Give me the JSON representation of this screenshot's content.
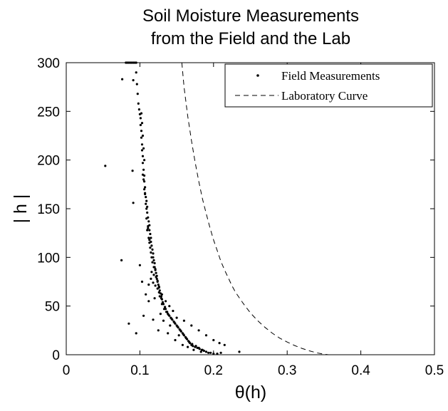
{
  "chart_data": {
    "type": "scatter",
    "title": [
      "Soil Moisture Measurements",
      "from the Field and the Lab"
    ],
    "xlabel": "θ(h)",
    "ylabel": "| h |",
    "xlim": [
      0,
      0.5
    ],
    "ylim": [
      0,
      300
    ],
    "xticks": [
      "0",
      "0.1",
      "0.2",
      "0.3",
      "0.4",
      "0.5"
    ],
    "yticks": [
      "0",
      "50",
      "100",
      "150",
      "200",
      "250",
      "300"
    ],
    "grid": false,
    "legend_position": "top-right",
    "series": [
      {
        "name": "Field Measurements",
        "style": "dots",
        "color": "#000000",
        "points": [
          [
            0.081,
            300
          ],
          [
            0.083,
            300
          ],
          [
            0.085,
            300
          ],
          [
            0.087,
            300
          ],
          [
            0.089,
            300
          ],
          [
            0.091,
            300
          ],
          [
            0.093,
            300
          ],
          [
            0.095,
            300
          ],
          [
            0.076,
            283
          ],
          [
            0.091,
            282
          ],
          [
            0.095,
            290
          ],
          [
            0.096,
            278
          ],
          [
            0.097,
            268
          ],
          [
            0.098,
            258
          ],
          [
            0.099,
            252
          ],
          [
            0.1,
            247
          ],
          [
            0.101,
            243
          ],
          [
            0.101,
            236
          ],
          [
            0.102,
            230
          ],
          [
            0.102,
            223
          ],
          [
            0.103,
            216
          ],
          [
            0.103,
            210
          ],
          [
            0.104,
            204
          ],
          [
            0.104,
            197
          ],
          [
            0.105,
            190
          ],
          [
            0.106,
            184
          ],
          [
            0.106,
            178
          ],
          [
            0.107,
            172
          ],
          [
            0.107,
            166
          ],
          [
            0.108,
            162
          ],
          [
            0.109,
            158
          ],
          [
            0.11,
            152
          ],
          [
            0.11,
            146
          ],
          [
            0.111,
            141
          ],
          [
            0.112,
            137
          ],
          [
            0.113,
            133
          ],
          [
            0.113,
            128
          ],
          [
            0.114,
            124
          ],
          [
            0.115,
            120
          ],
          [
            0.115,
            116
          ],
          [
            0.116,
            112
          ],
          [
            0.117,
            108
          ],
          [
            0.118,
            104
          ],
          [
            0.118,
            100
          ],
          [
            0.119,
            97
          ],
          [
            0.12,
            94
          ],
          [
            0.12,
            90
          ],
          [
            0.121,
            87
          ],
          [
            0.122,
            84
          ],
          [
            0.123,
            81
          ],
          [
            0.123,
            78
          ],
          [
            0.124,
            75
          ],
          [
            0.125,
            72
          ],
          [
            0.126,
            69
          ],
          [
            0.127,
            66
          ],
          [
            0.128,
            63
          ],
          [
            0.129,
            60
          ],
          [
            0.13,
            57
          ],
          [
            0.131,
            54
          ],
          [
            0.132,
            52
          ],
          [
            0.134,
            49
          ],
          [
            0.135,
            47
          ],
          [
            0.137,
            44
          ],
          [
            0.138,
            42
          ],
          [
            0.14,
            40
          ],
          [
            0.142,
            38
          ],
          [
            0.144,
            36
          ],
          [
            0.146,
            34
          ],
          [
            0.148,
            32
          ],
          [
            0.15,
            30
          ],
          [
            0.152,
            28
          ],
          [
            0.154,
            26
          ],
          [
            0.156,
            24
          ],
          [
            0.158,
            22
          ],
          [
            0.16,
            20
          ],
          [
            0.162,
            18
          ],
          [
            0.164,
            16
          ],
          [
            0.166,
            14
          ],
          [
            0.168,
            12
          ],
          [
            0.17,
            10
          ],
          [
            0.172,
            9
          ],
          [
            0.175,
            8
          ],
          [
            0.178,
            7
          ],
          [
            0.181,
            6
          ],
          [
            0.184,
            5
          ],
          [
            0.187,
            4
          ],
          [
            0.19,
            3
          ],
          [
            0.193,
            2
          ],
          [
            0.196,
            2
          ],
          [
            0.2,
            1
          ],
          [
            0.205,
            1
          ],
          [
            0.21,
            2
          ],
          [
            0.235,
            3
          ],
          [
            0.215,
            10
          ],
          [
            0.208,
            12
          ],
          [
            0.2,
            15
          ],
          [
            0.19,
            20
          ],
          [
            0.18,
            25
          ],
          [
            0.17,
            30
          ],
          [
            0.16,
            35
          ],
          [
            0.15,
            38
          ],
          [
            0.145,
            45
          ],
          [
            0.14,
            50
          ],
          [
            0.135,
            55
          ],
          [
            0.13,
            62
          ],
          [
            0.126,
            70
          ],
          [
            0.122,
            80
          ],
          [
            0.119,
            90
          ],
          [
            0.116,
            100
          ],
          [
            0.113,
            115
          ],
          [
            0.111,
            130
          ],
          [
            0.109,
            150
          ],
          [
            0.107,
            165
          ],
          [
            0.105,
            180
          ],
          [
            0.112,
            72
          ],
          [
            0.115,
            78
          ],
          [
            0.118,
            74
          ],
          [
            0.121,
            71
          ],
          [
            0.116,
            85
          ],
          [
            0.119,
            82
          ],
          [
            0.124,
            68
          ],
          [
            0.127,
            60
          ],
          [
            0.13,
            52
          ],
          [
            0.133,
            47
          ],
          [
            0.136,
            44
          ],
          [
            0.139,
            41
          ],
          [
            0.143,
            37
          ],
          [
            0.147,
            33
          ],
          [
            0.151,
            29
          ],
          [
            0.155,
            25
          ],
          [
            0.159,
            21
          ],
          [
            0.163,
            17
          ],
          [
            0.167,
            13
          ],
          [
            0.171,
            11
          ],
          [
            0.176,
            9
          ],
          [
            0.18,
            7
          ],
          [
            0.185,
            5
          ],
          [
            0.053,
            194
          ],
          [
            0.09,
            189
          ],
          [
            0.091,
            156
          ],
          [
            0.075,
            97
          ],
          [
            0.085,
            32
          ],
          [
            0.095,
            22
          ],
          [
            0.1,
            92
          ],
          [
            0.103,
            75
          ],
          [
            0.105,
            40
          ],
          [
            0.108,
            62
          ],
          [
            0.112,
            55
          ],
          [
            0.118,
            36
          ],
          [
            0.125,
            25
          ],
          [
            0.138,
            22
          ],
          [
            0.148,
            15
          ],
          [
            0.158,
            10
          ],
          [
            0.12,
            58
          ],
          [
            0.128,
            42
          ],
          [
            0.132,
            35
          ],
          [
            0.141,
            30
          ],
          [
            0.153,
            20
          ],
          [
            0.165,
            8
          ],
          [
            0.173,
            5
          ],
          [
            0.183,
            3
          ],
          [
            0.11,
            128
          ],
          [
            0.112,
            120
          ],
          [
            0.114,
            110
          ],
          [
            0.117,
            95
          ],
          [
            0.121,
            88
          ],
          [
            0.124,
            76
          ],
          [
            0.126,
            64
          ],
          [
            0.129,
            58
          ],
          [
            0.104,
            185
          ],
          [
            0.106,
            170
          ],
          [
            0.108,
            155
          ],
          [
            0.109,
            140
          ],
          [
            0.111,
            132
          ],
          [
            0.113,
            118
          ],
          [
            0.115,
            105
          ],
          [
            0.102,
            248
          ],
          [
            0.103,
            238
          ],
          [
            0.104,
            225
          ],
          [
            0.105,
            212
          ],
          [
            0.106,
            200
          ]
        ]
      },
      {
        "name": "Laboratory Curve",
        "style": "dashed",
        "color": "#000000",
        "points": [
          [
            0.157,
            300
          ],
          [
            0.16,
            275
          ],
          [
            0.165,
            245
          ],
          [
            0.17,
            220
          ],
          [
            0.175,
            198
          ],
          [
            0.18,
            178
          ],
          [
            0.185,
            160
          ],
          [
            0.19,
            145
          ],
          [
            0.195,
            131
          ],
          [
            0.2,
            118
          ],
          [
            0.205,
            107
          ],
          [
            0.21,
            96
          ],
          [
            0.215,
            87
          ],
          [
            0.22,
            79
          ],
          [
            0.225,
            71
          ],
          [
            0.23,
            64
          ],
          [
            0.24,
            53
          ],
          [
            0.25,
            43
          ],
          [
            0.26,
            35
          ],
          [
            0.27,
            28
          ],
          [
            0.28,
            22
          ],
          [
            0.29,
            17
          ],
          [
            0.3,
            13
          ],
          [
            0.31,
            9.5
          ],
          [
            0.32,
            6.5
          ],
          [
            0.33,
            4
          ],
          [
            0.34,
            2
          ],
          [
            0.35,
            0.6
          ],
          [
            0.356,
            0
          ]
        ]
      }
    ]
  }
}
